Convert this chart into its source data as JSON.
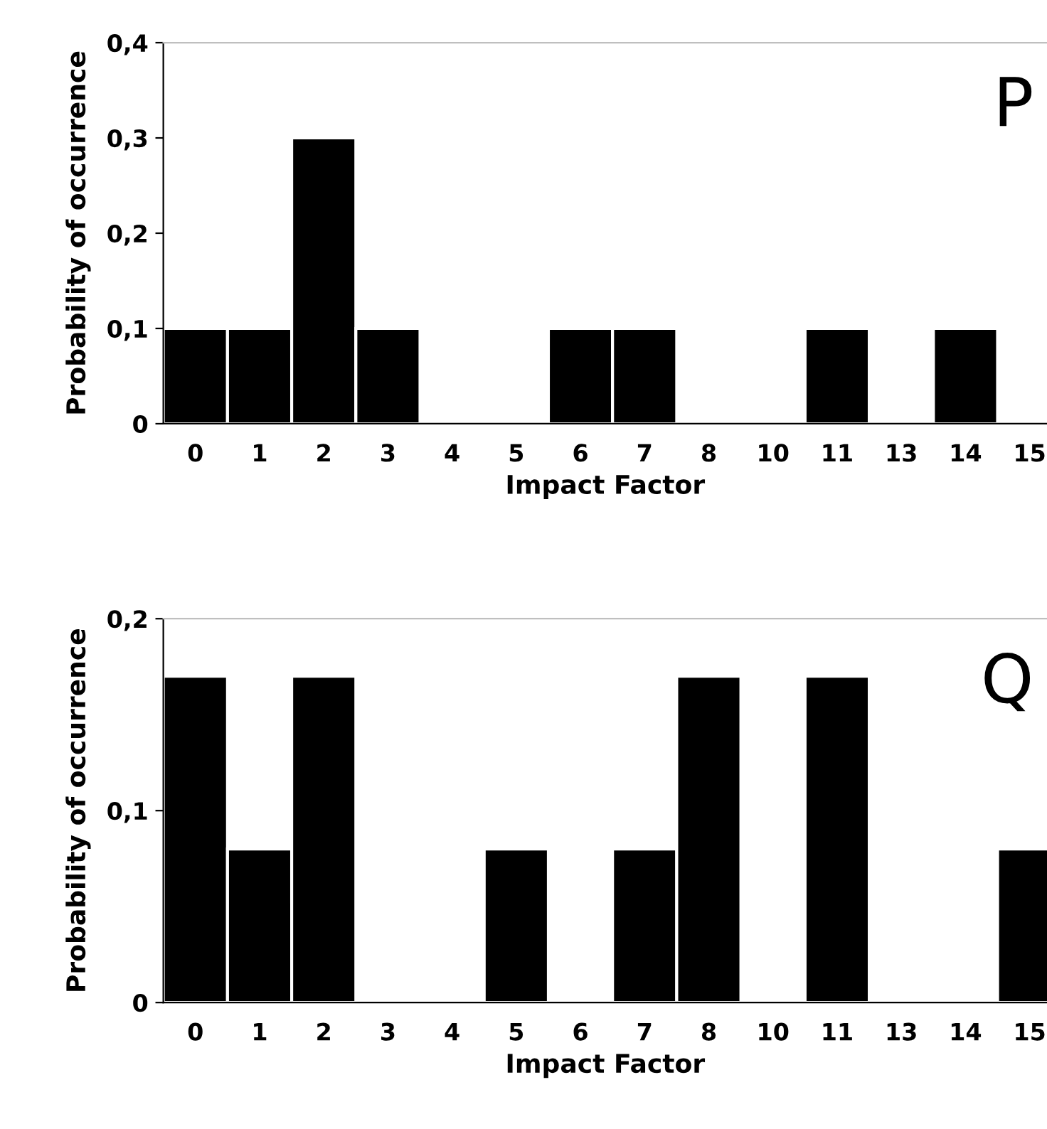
{
  "chart_data": [
    {
      "type": "bar",
      "xlabel": "Impact Factor",
      "ylabel": "Probability of occurrence",
      "categories": [
        "0",
        "1",
        "2",
        "3",
        "4",
        "5",
        "6",
        "7",
        "8",
        "10",
        "11",
        "13",
        "14",
        "15"
      ],
      "values": [
        0.1,
        0.1,
        0.3,
        0.1,
        0,
        0,
        0.1,
        0.1,
        0,
        0,
        0.1,
        0,
        0.1,
        0
      ],
      "color": "#000000",
      "ylim": [
        0,
        0.4
      ],
      "yticks": [
        {
          "value": 0,
          "label": "0"
        },
        {
          "value": 0.1,
          "label": "0,1"
        },
        {
          "value": 0.2,
          "label": "0,2"
        },
        {
          "value": 0.3,
          "label": "0,3"
        },
        {
          "value": 0.4,
          "label": "0,4"
        }
      ],
      "grid": false,
      "annotations": [
        "P"
      ]
    },
    {
      "type": "bar",
      "xlabel": "Impact Factor",
      "ylabel": "Probability of occurrence",
      "categories": [
        "0",
        "1",
        "2",
        "3",
        "4",
        "5",
        "6",
        "7",
        "8",
        "10",
        "11",
        "13",
        "14",
        "15"
      ],
      "values": [
        0.17,
        0.08,
        0.17,
        0,
        0,
        0.08,
        0,
        0.08,
        0.17,
        0,
        0.17,
        0,
        0,
        0.08
      ],
      "color": "#000000",
      "ylim": [
        0,
        0.2
      ],
      "yticks": [
        {
          "value": 0,
          "label": "0"
        },
        {
          "value": 0.1,
          "label": "0,1"
        },
        {
          "value": 0.2,
          "label": "0,2"
        }
      ],
      "grid": false,
      "annotations": [
        "Q"
      ]
    }
  ]
}
